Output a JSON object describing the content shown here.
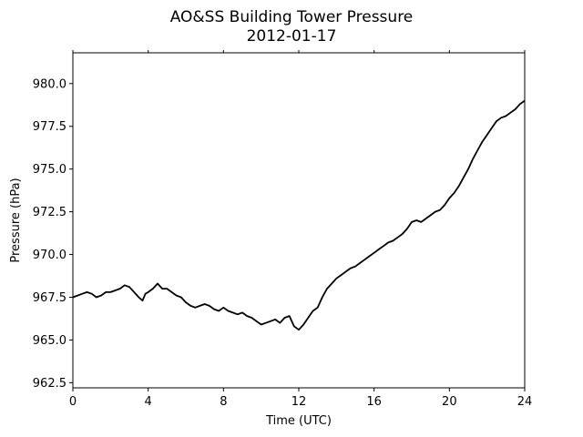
{
  "chart_data": {
    "type": "line",
    "title": "AO&SS Building Tower Pressure",
    "subtitle": "2012-01-17",
    "xlabel": "Time (UTC)",
    "ylabel": "Pressure (hPa)",
    "xlim": [
      0,
      24
    ],
    "ylim": [
      962.2,
      981.8
    ],
    "xticks": [
      0,
      4,
      8,
      12,
      16,
      20,
      24
    ],
    "xtick_labels": [
      "0",
      "4",
      "8",
      "12",
      "16",
      "20",
      "24"
    ],
    "yticks": [
      962.5,
      965.0,
      967.5,
      970.0,
      972.5,
      975.0,
      977.5,
      980.0
    ],
    "ytick_labels": [
      "962.5",
      "965.0",
      "967.5",
      "970.0",
      "972.5",
      "975.0",
      "977.5",
      "980.0"
    ],
    "grid": false,
    "line_color": "#000000",
    "series": [
      {
        "x": [
          0.0,
          0.25,
          0.5,
          0.75,
          1.0,
          1.25,
          1.5,
          1.75,
          2.0,
          2.25,
          2.5,
          2.75,
          3.0,
          3.25,
          3.5,
          3.7,
          3.85,
          4.0,
          4.25,
          4.5,
          4.75,
          5.0,
          5.25,
          5.5,
          5.75,
          6.0,
          6.25,
          6.5,
          6.75,
          7.0,
          7.25,
          7.5,
          7.75,
          8.0,
          8.25,
          8.5,
          8.75,
          9.0,
          9.25,
          9.5,
          9.75,
          10.0,
          10.25,
          10.5,
          10.75,
          11.0,
          11.25,
          11.5,
          11.75,
          12.0,
          12.25,
          12.5,
          12.75,
          13.0,
          13.25,
          13.5,
          13.75,
          14.0,
          14.25,
          14.5,
          14.75,
          15.0,
          15.25,
          15.5,
          15.75,
          16.0,
          16.25,
          16.5,
          16.75,
          17.0,
          17.25,
          17.5,
          17.75,
          18.0,
          18.25,
          18.5,
          18.75,
          19.0,
          19.25,
          19.5,
          19.75,
          20.0,
          20.25,
          20.5,
          20.75,
          21.0,
          21.25,
          21.5,
          21.75,
          22.0,
          22.25,
          22.5,
          22.75,
          23.0,
          23.25,
          23.5,
          23.75,
          24.0
        ],
        "y": [
          967.5,
          967.6,
          967.7,
          967.8,
          967.7,
          967.5,
          967.6,
          967.8,
          967.8,
          967.9,
          968.0,
          968.2,
          968.1,
          967.8,
          967.5,
          967.3,
          967.7,
          967.8,
          968.0,
          968.3,
          968.0,
          968.0,
          967.8,
          967.6,
          967.5,
          967.2,
          967.0,
          966.9,
          967.0,
          967.1,
          967.0,
          966.8,
          966.7,
          966.9,
          966.7,
          966.6,
          966.5,
          966.6,
          966.4,
          966.3,
          966.1,
          965.9,
          966.0,
          966.1,
          966.2,
          966.0,
          966.3,
          966.4,
          965.8,
          965.6,
          965.9,
          966.3,
          966.7,
          966.9,
          967.5,
          968.0,
          968.3,
          968.6,
          968.8,
          969.0,
          969.2,
          969.3,
          969.5,
          969.7,
          969.9,
          970.1,
          970.3,
          970.5,
          970.7,
          970.8,
          971.0,
          971.2,
          971.5,
          971.9,
          972.0,
          971.9,
          972.1,
          972.3,
          972.5,
          972.6,
          972.9,
          973.3,
          973.6,
          974.0,
          974.5,
          975.0,
          975.6,
          976.1,
          976.6,
          977.0,
          977.4,
          977.8,
          978.0,
          978.1,
          978.3,
          978.5,
          978.8,
          979.0
        ]
      }
    ]
  }
}
